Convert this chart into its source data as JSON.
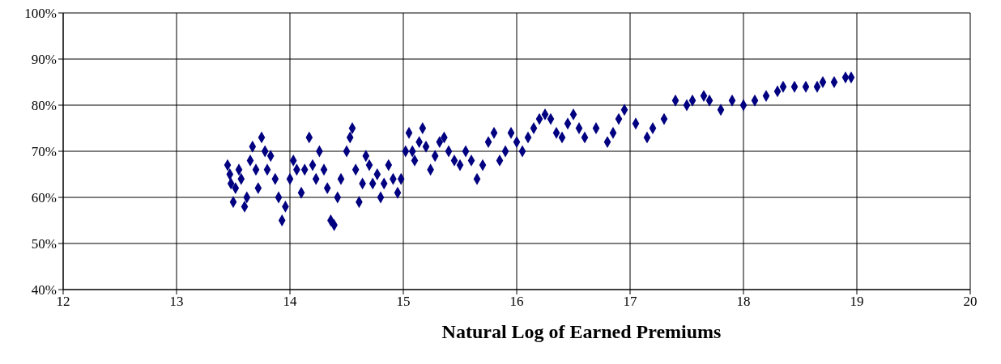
{
  "chart_data": {
    "type": "scatter",
    "xlabel": "Natural Log of Earned Premiums",
    "x": [
      13.45,
      13.47,
      13.48,
      13.5,
      13.52,
      13.55,
      13.57,
      13.6,
      13.62,
      13.65,
      13.67,
      13.7,
      13.72,
      13.75,
      13.78,
      13.8,
      13.83,
      13.87,
      13.9,
      13.93,
      13.96,
      14.0,
      14.03,
      14.06,
      14.1,
      14.13,
      14.17,
      14.2,
      14.23,
      14.26,
      14.3,
      14.33,
      14.36,
      14.39,
      14.42,
      14.45,
      14.5,
      14.53,
      14.55,
      14.58,
      14.61,
      14.64,
      14.67,
      14.7,
      14.73,
      14.77,
      14.8,
      14.83,
      14.87,
      14.91,
      14.95,
      14.98,
      15.02,
      15.05,
      15.08,
      15.1,
      15.14,
      15.17,
      15.2,
      15.24,
      15.28,
      15.32,
      15.36,
      15.4,
      15.45,
      15.5,
      15.55,
      15.6,
      15.65,
      15.7,
      15.75,
      15.8,
      15.85,
      15.9,
      15.95,
      16.0,
      16.05,
      16.1,
      16.15,
      16.2,
      16.25,
      16.3,
      16.35,
      16.4,
      16.45,
      16.5,
      16.55,
      16.6,
      16.7,
      16.8,
      16.85,
      16.9,
      16.95,
      17.05,
      17.15,
      17.2,
      17.3,
      17.4,
      17.5,
      17.55,
      17.65,
      17.7,
      17.8,
      17.9,
      18.0,
      18.1,
      18.2,
      18.3,
      18.35,
      18.45,
      18.55,
      18.65,
      18.7,
      18.8,
      18.9,
      18.95
    ],
    "series": [
      {
        "color": "#000080",
        "values": [
          67,
          65,
          63,
          59,
          62,
          66,
          64,
          58,
          60,
          68,
          71,
          66,
          62,
          73,
          70,
          66,
          69,
          64,
          60,
          55,
          58,
          64,
          68,
          66,
          61,
          66,
          73,
          67,
          64,
          70,
          66,
          62,
          55,
          54,
          60,
          64,
          70,
          73,
          75,
          66,
          59,
          63,
          69,
          67,
          63,
          65,
          60,
          63,
          67,
          64,
          61,
          64,
          70,
          74,
          70,
          68,
          72,
          75,
          71,
          66,
          69,
          72,
          73,
          70,
          68,
          67,
          70,
          68,
          64,
          67,
          72,
          74,
          68,
          70,
          74,
          72,
          70,
          73,
          75,
          77,
          78,
          77,
          74,
          73,
          76,
          78,
          75,
          73,
          75,
          72,
          74,
          77,
          79,
          76,
          73,
          75,
          77,
          81,
          80,
          81,
          82,
          81,
          79,
          81,
          80,
          81,
          82,
          83,
          84,
          84,
          84,
          84,
          85,
          85,
          86,
          86
        ]
      }
    ],
    "xlim": [
      12,
      20
    ],
    "xticks": [
      12,
      13,
      14,
      15,
      16,
      17,
      18,
      19,
      20
    ],
    "ylim": [
      40,
      100
    ],
    "yticks": [
      {
        "value": 40,
        "label": "40%"
      },
      {
        "value": 50,
        "label": "50%"
      },
      {
        "value": 60,
        "label": "60%"
      },
      {
        "value": 70,
        "label": "70%"
      },
      {
        "value": 80,
        "label": "80%"
      },
      {
        "value": 90,
        "label": "90%"
      },
      {
        "value": 100,
        "label": "100%"
      }
    ],
    "grid": true,
    "marker": "diamond"
  }
}
